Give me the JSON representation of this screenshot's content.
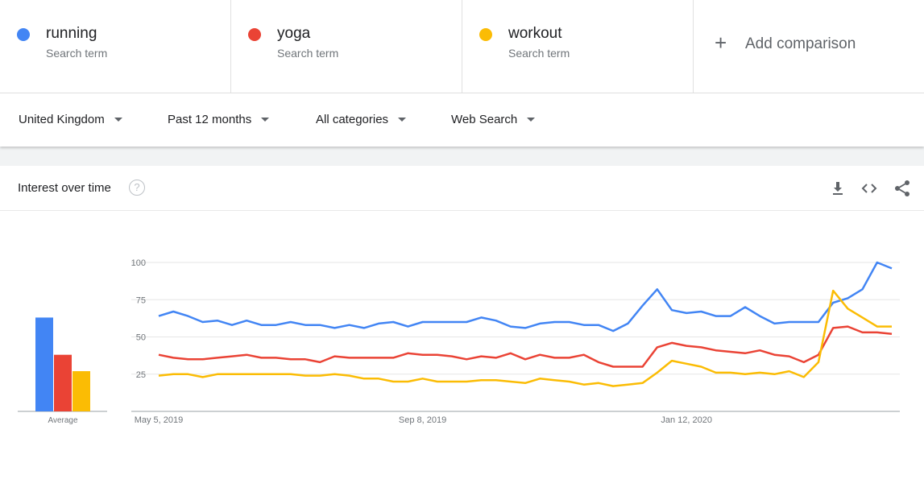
{
  "terms": [
    {
      "name": "running",
      "sub": "Search term",
      "color": "#4285f4"
    },
    {
      "name": "yoga",
      "sub": "Search term",
      "color": "#ea4335"
    },
    {
      "name": "workout",
      "sub": "Search term",
      "color": "#fbbc04"
    }
  ],
  "add_comparison": {
    "icon": "plus-icon",
    "label": "Add comparison"
  },
  "filters": [
    {
      "label": "United Kingdom"
    },
    {
      "label": "Past 12 months"
    },
    {
      "label": "All categories"
    },
    {
      "label": "Web Search"
    }
  ],
  "card": {
    "title": "Interest over time",
    "help_glyph": "?",
    "tools": [
      "download-icon",
      "embed-code-icon",
      "share-icon"
    ]
  },
  "chart_data": {
    "type": "line",
    "ylim": [
      0,
      100
    ],
    "yticks": [
      "100",
      "75",
      "50",
      "25"
    ],
    "xticks": [
      "May 5, 2019",
      "Sep 8, 2019",
      "Jan 12, 2020"
    ],
    "average_label": "Average",
    "series": [
      {
        "name": "running",
        "color": "#4285f4",
        "average": 63,
        "values": [
          64,
          67,
          64,
          60,
          61,
          58,
          61,
          58,
          58,
          60,
          58,
          58,
          56,
          58,
          56,
          59,
          60,
          57,
          60,
          60,
          60,
          60,
          63,
          61,
          57,
          56,
          59,
          60,
          60,
          58,
          58,
          54,
          59,
          71,
          82,
          68,
          66,
          67,
          64,
          64,
          70,
          64,
          59,
          60,
          60,
          60,
          73,
          76,
          82,
          100,
          96
        ]
      },
      {
        "name": "yoga",
        "color": "#ea4335",
        "average": 38,
        "values": [
          38,
          36,
          35,
          35,
          36,
          37,
          38,
          36,
          36,
          35,
          35,
          33,
          37,
          36,
          36,
          36,
          36,
          39,
          38,
          38,
          37,
          35,
          37,
          36,
          39,
          35,
          38,
          36,
          36,
          38,
          33,
          30,
          30,
          30,
          43,
          46,
          44,
          43,
          41,
          40,
          39,
          41,
          38,
          37,
          33,
          38,
          56,
          57,
          53,
          53,
          52
        ]
      },
      {
        "name": "workout",
        "color": "#fbbc04",
        "average": 27,
        "values": [
          24,
          25,
          25,
          23,
          25,
          25,
          25,
          25,
          25,
          25,
          24,
          24,
          25,
          24,
          22,
          22,
          20,
          20,
          22,
          20,
          20,
          20,
          21,
          21,
          20,
          19,
          22,
          21,
          20,
          18,
          19,
          17,
          18,
          19,
          26,
          34,
          32,
          30,
          26,
          26,
          25,
          26,
          25,
          27,
          23,
          33,
          81,
          69,
          63,
          57,
          57
        ]
      }
    ]
  }
}
